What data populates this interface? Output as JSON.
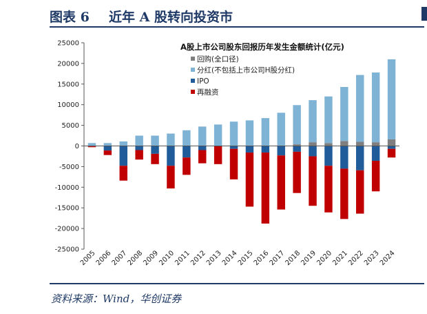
{
  "figure": {
    "number": "图表 6",
    "title": "近年 A 股转向投资市",
    "source": "资料来源：Wind，华创证券"
  },
  "chart_data": {
    "type": "bar",
    "stacked": true,
    "title": "A股上市公司股东回报历年发生金额统计(亿元)",
    "xlabel": "",
    "ylabel": "",
    "ylim": [
      -25000,
      25000
    ],
    "yticks": [
      25000,
      20000,
      15000,
      10000,
      5000,
      0,
      -5000,
      -10000,
      -15000,
      -20000,
      -25000
    ],
    "grid": false,
    "legend_position": "top-left",
    "categories": [
      "2005",
      "2006",
      "2007",
      "2008",
      "2009",
      "2010",
      "2011",
      "2012",
      "2013",
      "2014",
      "2015",
      "2016",
      "2017",
      "2018",
      "2019",
      "2020",
      "2021",
      "2022",
      "2023",
      "2024"
    ],
    "series": [
      {
        "name": "回购(全口径)",
        "color": "#7f7f7f",
        "values": [
          0,
          0,
          0,
          0,
          0,
          0,
          0,
          0,
          0,
          0,
          0,
          50,
          50,
          400,
          900,
          700,
          1200,
          1000,
          900,
          1600
        ]
      },
      {
        "name": "分红(不包括上市公司H股分红)",
        "color": "#7fb3d5",
        "values": [
          700,
          700,
          1100,
          2500,
          2500,
          3000,
          3800,
          4700,
          5200,
          5900,
          6200,
          6700,
          8000,
          9500,
          10200,
          11300,
          13100,
          16200,
          16900,
          19400
        ]
      },
      {
        "name": "IPO",
        "color": "#1f5c99",
        "values": [
          -100,
          -1100,
          -4800,
          -1000,
          -1900,
          -4800,
          -2800,
          -1000,
          0,
          -700,
          -1600,
          -1600,
          -2300,
          -1400,
          -2500,
          -4800,
          -5500,
          -5900,
          -3600,
          -700
        ]
      },
      {
        "name": "再融资",
        "color": "#c00000",
        "values": [
          -200,
          -1100,
          -3600,
          -2300,
          -2500,
          -5500,
          -4200,
          -3200,
          -4400,
          -7400,
          -13100,
          -17200,
          -13100,
          -10000,
          -12000,
          -11300,
          -12200,
          -10500,
          -7400,
          -2100
        ]
      }
    ]
  }
}
